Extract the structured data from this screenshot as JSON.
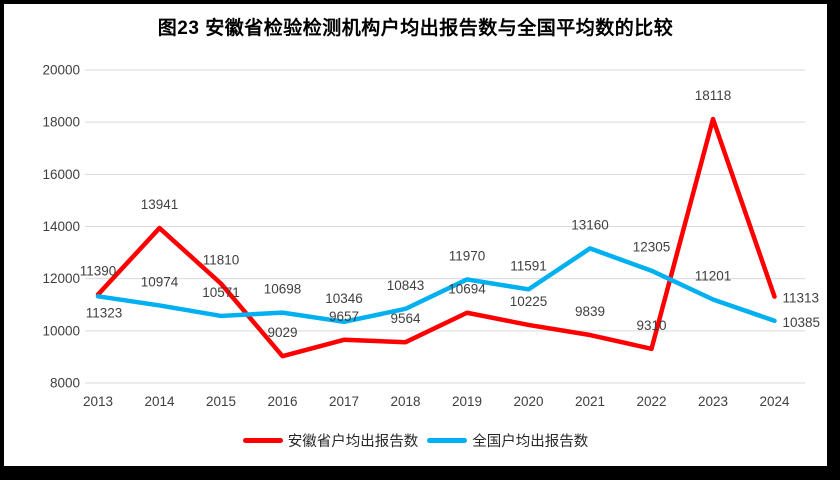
{
  "title": "图23 安徽省检验检测机构户均出报告数与全国平均数的比较",
  "chart_data": {
    "type": "line",
    "categories": [
      "2013",
      "2014",
      "2015",
      "2016",
      "2017",
      "2018",
      "2019",
      "2020",
      "2021",
      "2022",
      "2023",
      "2024"
    ],
    "series": [
      {
        "name": "安徽省户均出报告数",
        "color": "#FF0000",
        "values": [
          11390,
          13941,
          11810,
          9029,
          9657,
          9564,
          10694,
          10225,
          9839,
          9310,
          18118,
          11313
        ],
        "label_positions": [
          "above",
          "above",
          "above",
          "above",
          "above",
          "above",
          "above",
          "above",
          "above",
          "above",
          "above",
          "right"
        ]
      },
      {
        "name": "全国户均出报告数",
        "color": "#00B0F0",
        "values": [
          11323,
          10974,
          10571,
          10698,
          10346,
          10843,
          11970,
          11591,
          13160,
          12305,
          11201,
          10385
        ],
        "label_positions": [
          "below",
          "above",
          "above",
          "above",
          "above",
          "above",
          "above",
          "above",
          "above",
          "above",
          "above",
          "right"
        ]
      }
    ],
    "title": "图23 安徽省检验检测机构户均出报告数与全国平均数的比较",
    "xlabel": "",
    "ylabel": "",
    "ylim": [
      8000,
      20000
    ],
    "ytick_step": 2000,
    "grid": "horizontal",
    "grid_color": "#D9D9D9",
    "axis_label_color": "#404040",
    "data_label_color": "#404040",
    "legend_position": "bottom"
  },
  "legend": {
    "items": [
      {
        "label": "安徽省户均出报告数",
        "color": "#FF0000"
      },
      {
        "label": "全国户均出报告数",
        "color": "#00B0F0"
      }
    ]
  }
}
